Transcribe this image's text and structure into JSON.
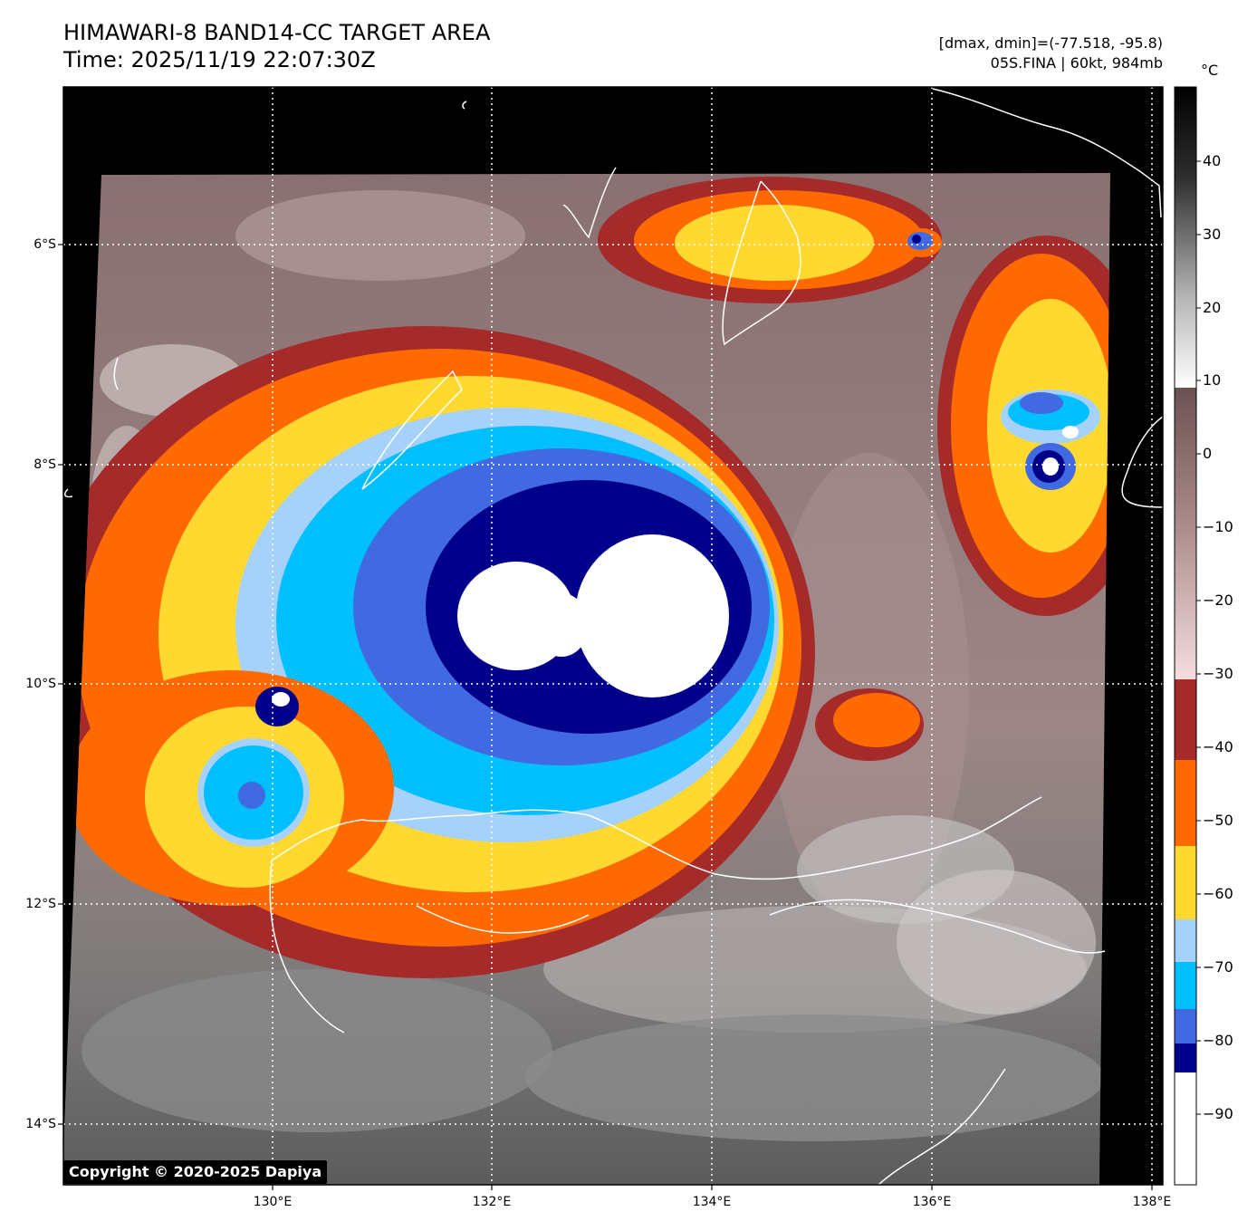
{
  "header": {
    "title": "HIMAWARI-8 BAND14-CC TARGET AREA",
    "time": "Time: 2025/11/19 22:07:30Z",
    "range": "[dmax, dmin]=(-77.518, -95.8)",
    "storm": "05S.FINA | 60kt, 984mb"
  },
  "map": {
    "lat_labels": [
      "6°S",
      "8°S",
      "10°S",
      "12°S",
      "14°S"
    ],
    "lon_labels": [
      "130°E",
      "132°E",
      "134°E",
      "136°E",
      "138°E"
    ],
    "grid": "dotted white",
    "coastline_color": "#ffffff"
  },
  "colorbar": {
    "unit": "°C",
    "ticks": [
      "40",
      "30",
      "20",
      "10",
      "0",
      "−10",
      "−20",
      "−30",
      "−40",
      "−50",
      "−60",
      "−70",
      "−80",
      "−90"
    ],
    "bands": [
      {
        "from": 49,
        "to": 10,
        "color": "gray-scale"
      },
      {
        "from": 10,
        "to": -31,
        "color": "brown-pink gradient"
      },
      {
        "from": -31,
        "to": -42,
        "color": "#a52a2a"
      },
      {
        "from": -42,
        "to": -53,
        "color": "#ff6a00"
      },
      {
        "from": -53,
        "to": -63,
        "color": "#ffd92f"
      },
      {
        "from": -63,
        "to": -69,
        "color": "#a6d1fb"
      },
      {
        "from": -69,
        "to": -78,
        "color": "#00bfff"
      },
      {
        "from": -78,
        "to": -82,
        "color": "#4169e1"
      },
      {
        "from": -82,
        "to": -86,
        "color": "#00008b"
      },
      {
        "from": -86,
        "to": -100,
        "color": "#ffffff"
      }
    ]
  },
  "footer": {
    "copyright": "Copyright © 2020-2025 Dapiya"
  }
}
